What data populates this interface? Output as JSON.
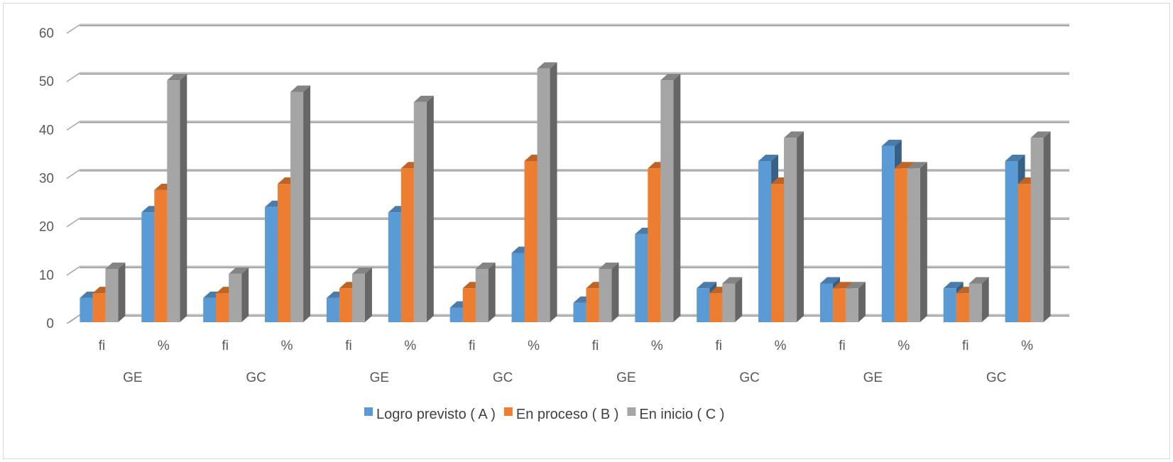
{
  "chart_data": {
    "type": "bar",
    "style": "3d-clustered-column",
    "ylim": [
      0,
      60
    ],
    "y_ticks": [
      "0",
      "10",
      "20",
      "30",
      "40",
      "50",
      "60"
    ],
    "grid": true,
    "legend_position": "bottom",
    "categories": [
      "fi",
      "%",
      "fi",
      "%",
      "fi",
      "%",
      "fi",
      "%",
      "fi",
      "%",
      "fi",
      "%",
      "fi",
      "%",
      "fi",
      "%"
    ],
    "groups": [
      "GE",
      "GC",
      "GE",
      "GC",
      "GE",
      "GC",
      "GE",
      "GC"
    ],
    "series": [
      {
        "name": "Logro previsto ( A )",
        "color": "#5b9bd5",
        "values": [
          5,
          22.7,
          5,
          23.8,
          5,
          22.7,
          3,
          14.3,
          4,
          18.2,
          7,
          33.3,
          8,
          36.4,
          7,
          33.3
        ]
      },
      {
        "name": "En proceso ( B )",
        "color": "#ed7d31",
        "values": [
          6,
          27.3,
          6,
          28.6,
          7,
          31.8,
          7,
          33.3,
          7,
          31.8,
          6,
          28.6,
          7,
          31.8,
          6,
          28.6
        ]
      },
      {
        "name": "En inicio ( C )",
        "color": "#a5a5a5",
        "values": [
          11,
          50,
          10,
          47.6,
          10,
          45.5,
          11,
          52.4,
          11,
          50,
          8,
          38.1,
          7,
          31.8,
          8,
          38.1
        ]
      }
    ]
  }
}
